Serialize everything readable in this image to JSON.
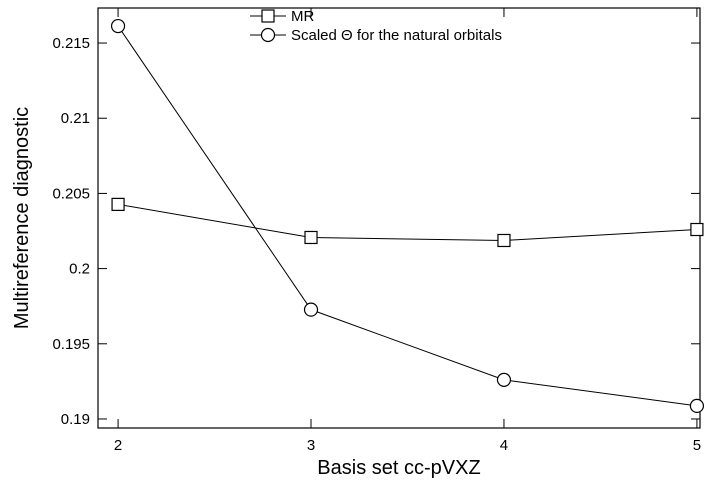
{
  "chart_data": {
    "type": "line",
    "x_label": "Basis set cc-pVXZ",
    "y_label": "Multireference diagnostic",
    "x": [
      2,
      3,
      4,
      5
    ],
    "series": [
      {
        "name": "MR",
        "color": "#000000",
        "marker": "square",
        "values": [
          0.20427,
          0.20207,
          0.20187,
          0.2026
        ]
      },
      {
        "name": "Scaled Θ for the natural orbitals",
        "color": "#000000",
        "marker": "circle",
        "values": [
          0.21613,
          0.19727,
          0.1926,
          0.19087
        ]
      }
    ],
    "xlim": [
      1.896,
      5.016
    ],
    "xticks": [
      2,
      3,
      4,
      5
    ],
    "ylim": [
      0.1894,
      0.21733
    ],
    "yticks": [
      0.19,
      0.195,
      0.2,
      0.205,
      0.21,
      0.215
    ],
    "grid": false,
    "legend": "top"
  }
}
